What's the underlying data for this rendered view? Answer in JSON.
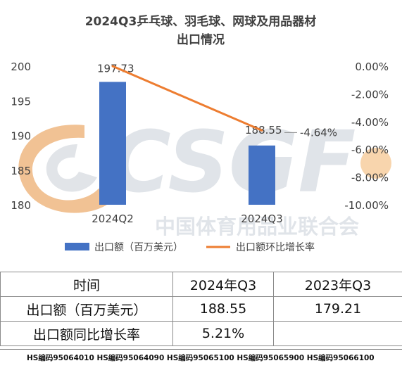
{
  "chart_data": {
    "type": "bar+line",
    "title_line1": "2024Q3乒乓球、羽毛球、网球及用品器材",
    "title_line2": "出口情况",
    "categories": [
      "2024Q2",
      "2024Q3"
    ],
    "bar_series": {
      "name": "出口额（百万美元）",
      "values": [
        197.73,
        188.55
      ],
      "labels": [
        "197.73",
        "188.55"
      ],
      "color": "#4472C4"
    },
    "line_series": {
      "name": "出口额环比增长率",
      "values": [
        0.0,
        -4.64
      ],
      "labels": [
        "",
        "-4.64%"
      ],
      "color": "#ED7D31"
    },
    "y_left": {
      "min": 180,
      "max": 200,
      "ticks": [
        "180",
        "185",
        "190",
        "195",
        "200"
      ]
    },
    "y_right": {
      "min": -10,
      "max": 0,
      "ticks": [
        "0.00%",
        "-2.00%",
        "-4.00%",
        "-6.00%",
        "-8.00%",
        "-10.00%"
      ]
    },
    "legend_position": "bottom"
  },
  "watermark": {
    "logo_text": "CSGF",
    "org_text": "中国体育用品业联合会"
  },
  "table": {
    "header": [
      "时间",
      "2024年Q3",
      "2023年Q3"
    ],
    "rows": [
      [
        "出口额（百万美元）",
        "188.55",
        "179.21"
      ],
      [
        "出口额同比增长率",
        "5.21%",
        ""
      ]
    ]
  },
  "footer_text": "HS编码95064010 HS编码95064090 HS编码95065100 HS编码95065900 HS编码95066100"
}
